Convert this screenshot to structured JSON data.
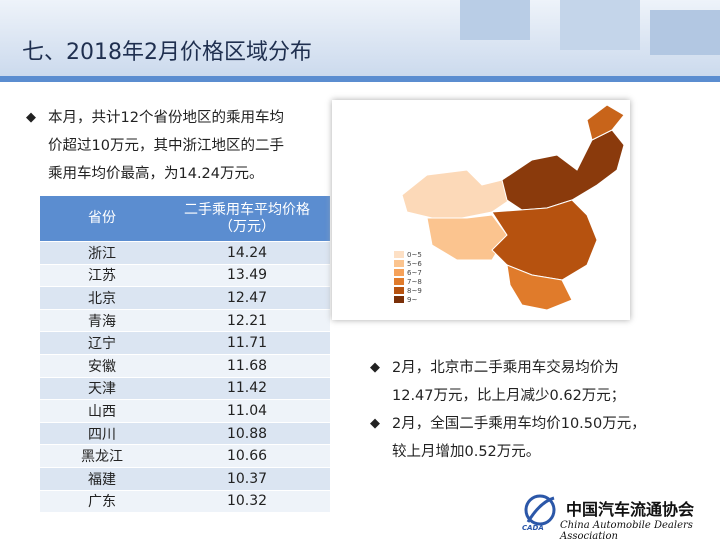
{
  "header": {
    "title": "七、2018年2月价格区域分布"
  },
  "left_bullet": {
    "lines": [
      "本月，共计12个省份地区的乘用车均",
      "价超过10万元，其中浙江地区的二手",
      "乘用车均价最高，为14.24万元。"
    ]
  },
  "table": {
    "columns": [
      "省份",
      "二手乘用车平均价格\n（万元）"
    ],
    "rows": [
      [
        "浙江",
        "14.24"
      ],
      [
        "江苏",
        "13.49"
      ],
      [
        "北京",
        "12.47"
      ],
      [
        "青海",
        "12.21"
      ],
      [
        "辽宁",
        "11.71"
      ],
      [
        "安徽",
        "11.68"
      ],
      [
        "天津",
        "11.42"
      ],
      [
        "山西",
        "11.04"
      ],
      [
        "四川",
        "10.88"
      ],
      [
        "黑龙江",
        "10.66"
      ],
      [
        "福建",
        "10.37"
      ],
      [
        "广东",
        "10.32"
      ]
    ]
  },
  "map": {
    "legend": [
      "0~5",
      "5~6",
      "6~7",
      "7~8",
      "8~9",
      "9~"
    ]
  },
  "right_bullets": [
    {
      "lines": [
        "2月，北京市二手乘用车交易均价为",
        "12.47万元，比上月减少0.62万元；"
      ]
    },
    {
      "lines": [
        "2月，全国二手乘用车均价10.50万元，",
        "较上月增加0.52万元。"
      ]
    }
  ],
  "logo": {
    "cn": "中国汽车流通协会",
    "en": "China Automobile Dealers Association",
    "abbr": "CADA"
  }
}
